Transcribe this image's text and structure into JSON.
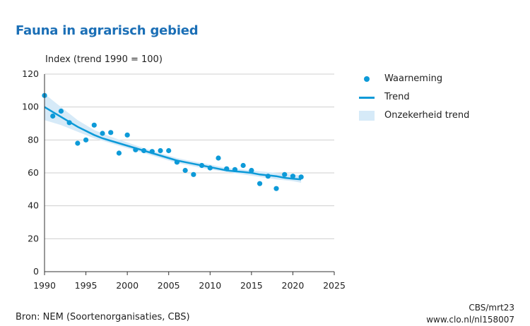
{
  "chart_data": {
    "type": "scatter",
    "title": "Fauna in agrarisch gebied",
    "ylabel": "Index (trend 1990 = 100)",
    "xlabel": "",
    "xlim": [
      1990,
      2025
    ],
    "ylim": [
      0,
      120
    ],
    "xticks": [
      "1990",
      "1995",
      "2000",
      "2005",
      "2010",
      "2015",
      "2020",
      "2025"
    ],
    "yticks": [
      "0",
      "20",
      "40",
      "60",
      "80",
      "100",
      "120"
    ],
    "grid": "horizontal",
    "legend_position": "right",
    "series": [
      {
        "name": "Waarneming",
        "kind": "points",
        "color": "#0d9ad8",
        "x": [
          1990,
          1991,
          1992,
          1993,
          1994,
          1995,
          1996,
          1997,
          1998,
          1999,
          2000,
          2001,
          2002,
          2003,
          2004,
          2005,
          2006,
          2007,
          2008,
          2009,
          2010,
          2011,
          2012,
          2013,
          2014,
          2015,
          2016,
          2017,
          2018,
          2019,
          2020,
          2021
        ],
        "y": [
          107,
          94.5,
          97.5,
          90.5,
          78,
          80,
          89,
          84,
          84.5,
          72,
          83,
          74,
          73.5,
          73,
          73.5,
          73.5,
          66.5,
          61.5,
          59,
          64.5,
          63,
          69,
          62.5,
          62,
          64.5,
          61.5,
          53.5,
          58,
          50.5,
          59,
          58,
          57.5
        ]
      },
      {
        "name": "Trend",
        "kind": "line",
        "color": "#0d9ad8",
        "x": [
          1990,
          1991,
          1992,
          1993,
          1994,
          1995,
          1996,
          1997,
          1998,
          1999,
          2000,
          2001,
          2002,
          2003,
          2004,
          2005,
          2006,
          2007,
          2008,
          2009,
          2010,
          2011,
          2012,
          2013,
          2014,
          2015,
          2016,
          2017,
          2018,
          2019,
          2020,
          2021
        ],
        "y": [
          100,
          97,
          94,
          91,
          88,
          85.5,
          83,
          81,
          79.5,
          78,
          76.5,
          75,
          73.5,
          72,
          70.5,
          69,
          67.5,
          66.5,
          65.5,
          64.5,
          63.5,
          62.5,
          61.5,
          61,
          60.5,
          60,
          59,
          58.5,
          58,
          57,
          56.5,
          56
        ]
      },
      {
        "name": "Onzekerheid trend",
        "kind": "band",
        "color": "#d6eaf8",
        "x": [
          1990,
          1992,
          1994,
          1996,
          1998,
          2000,
          2002,
          2004,
          2006,
          2008,
          2010,
          2012,
          2014,
          2016,
          2018,
          2020,
          2021
        ],
        "lower": [
          92,
          89,
          85,
          81,
          78,
          75,
          72,
          69,
          66,
          64,
          62,
          60.5,
          59,
          57.5,
          56,
          55,
          54
        ],
        "upper": [
          108,
          100,
          92,
          86,
          82,
          78.5,
          75,
          72,
          69,
          67,
          65,
          63,
          62,
          61,
          60,
          59,
          58.5
        ]
      }
    ]
  },
  "source_text": "Bron: NEM (Soortenorganisaties, CBS)",
  "credit": {
    "line1": "CBS/mrt23",
    "line2": "www.clo.nl/nl158007"
  }
}
